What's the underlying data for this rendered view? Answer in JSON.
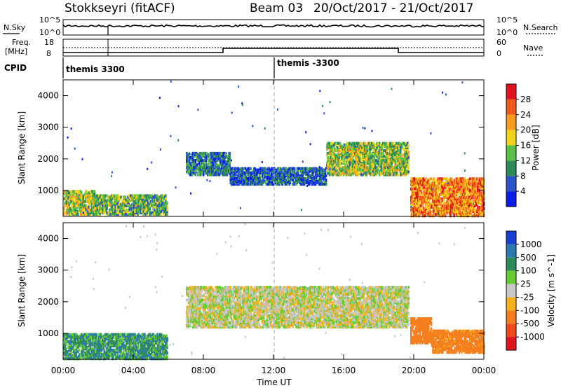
{
  "header": {
    "station": "Stokkseyri (fitACF)",
    "beam": "Beam 03",
    "date_range": "20/Oct/2017 - 21/Oct/2017"
  },
  "top_panels": {
    "nsky_label": "N.Sky",
    "nsearch_label": "N.Search",
    "noise_ticks": [
      "10^5",
      "10^0"
    ],
    "freq_label_line1": "Freq.",
    "freq_label_line2": "[MHz]",
    "freq_ticks": [
      "18",
      "8"
    ],
    "nave_label": "Nave",
    "nave_ticks": [
      "60",
      "0"
    ],
    "cpid_label": "CPID",
    "cpid_segments": [
      "themis 3300",
      "themis -3300"
    ]
  },
  "chart_data": [
    {
      "type": "heatmap",
      "title": "",
      "xlabel": "Time UT",
      "ylabel": "Slant Range [km]",
      "x_ticks": [
        "00:00",
        "04:00",
        "08:00",
        "12:00",
        "16:00",
        "20:00",
        "00:00"
      ],
      "x_range_hours": [
        0,
        24
      ],
      "y_ticks": [
        "1000",
        "2000",
        "3000",
        "4000"
      ],
      "y_range_km": [
        180,
        4500
      ],
      "colorbar": {
        "label": "Power [dB]",
        "ticks": [
          "4",
          "8",
          "12",
          "16",
          "20",
          "24",
          "28"
        ],
        "range": [
          0,
          30
        ],
        "colors": [
          "#0a1ee6",
          "#2a55c8",
          "#2e8b57",
          "#5bbf4a",
          "#f2d21a",
          "#f59b1e",
          "#ee5a1a",
          "#e0141e"
        ]
      },
      "echo_bands": [
        {
          "t_start": 0.0,
          "t_end": 1.8,
          "range_km": [
            250,
            1000
          ],
          "value_db": 14
        },
        {
          "t_start": 1.8,
          "t_end": 5.9,
          "range_km": [
            250,
            850
          ],
          "value_db": 12
        },
        {
          "t_start": 7.0,
          "t_end": 9.5,
          "range_km": [
            1500,
            2200
          ],
          "value_db": 8
        },
        {
          "t_start": 9.5,
          "t_end": 15.0,
          "range_km": [
            1200,
            1700
          ],
          "value_db": 6
        },
        {
          "t_start": 15.0,
          "t_end": 19.7,
          "range_km": [
            1500,
            2500
          ],
          "value_db": 14
        },
        {
          "t_start": 19.8,
          "t_end": 24.0,
          "range_km": [
            200,
            1400
          ],
          "value_db": 22
        }
      ]
    },
    {
      "type": "heatmap",
      "title": "",
      "xlabel": "Time UT",
      "ylabel": "Slant Range [km]",
      "x_ticks": [
        "00:00",
        "04:00",
        "08:00",
        "12:00",
        "16:00",
        "20:00",
        "00:00"
      ],
      "x_range_hours": [
        0,
        24
      ],
      "y_ticks": [
        "1000",
        "2000",
        "3000",
        "4000"
      ],
      "y_range_km": [
        180,
        4500
      ],
      "colorbar": {
        "label": "Velocity [m s^-1]",
        "ticks": [
          "1000",
          "500",
          "100",
          "25",
          "-25",
          "-100",
          "-500",
          "-1000"
        ],
        "range": [
          -1000,
          1000
        ],
        "colors": [
          "#1840d0",
          "#2a7ab0",
          "#2e8b57",
          "#66cc33",
          "#c8c8c8",
          "#f5b21e",
          "#f57f1e",
          "#ee4a1a",
          "#e0141e"
        ]
      },
      "echo_bands": [
        {
          "t_start": 0.0,
          "t_end": 5.9,
          "range_km": [
            200,
            1000
          ],
          "value_ms": 80
        },
        {
          "t_start": 7.0,
          "t_end": 19.7,
          "range_km": [
            1200,
            2500
          ],
          "value_ms": 0
        },
        {
          "t_start": 19.8,
          "t_end": 21.0,
          "range_km": [
            700,
            1500
          ],
          "value_ms": -300
        },
        {
          "t_start": 21.0,
          "t_end": 24.0,
          "range_km": [
            400,
            1100
          ],
          "value_ms": -150
        }
      ]
    }
  ]
}
